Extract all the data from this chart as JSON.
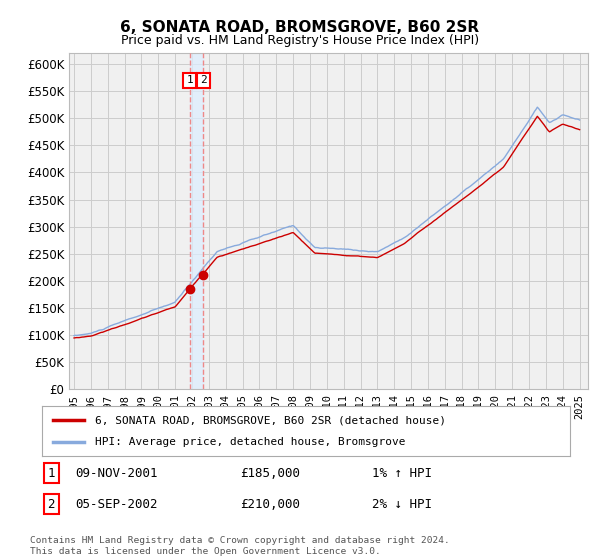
{
  "title": "6, SONATA ROAD, BROMSGROVE, B60 2SR",
  "subtitle": "Price paid vs. HM Land Registry's House Price Index (HPI)",
  "ylabel_ticks": [
    "£0",
    "£50K",
    "£100K",
    "£150K",
    "£200K",
    "£250K",
    "£300K",
    "£350K",
    "£400K",
    "£450K",
    "£500K",
    "£550K",
    "£600K"
  ],
  "ytick_values": [
    0,
    50000,
    100000,
    150000,
    200000,
    250000,
    300000,
    350000,
    400000,
    450000,
    500000,
    550000,
    600000
  ],
  "ylim": [
    0,
    620000
  ],
  "xlim_start": 1994.7,
  "xlim_end": 2025.5,
  "xtick_years": [
    1995,
    1996,
    1997,
    1998,
    1999,
    2000,
    2001,
    2002,
    2003,
    2004,
    2005,
    2006,
    2007,
    2008,
    2009,
    2010,
    2011,
    2012,
    2013,
    2014,
    2015,
    2016,
    2017,
    2018,
    2019,
    2020,
    2021,
    2022,
    2023,
    2024,
    2025
  ],
  "red_line_color": "#cc0000",
  "blue_line_color": "#88aadd",
  "dashed_line_color": "#ee8888",
  "shade_color": "#ddeeff",
  "marker_color": "#cc0000",
  "grid_color": "#cccccc",
  "bg_color": "#ffffff",
  "plot_bg_color": "#f0f0f0",
  "legend_label_red": "6, SONATA ROAD, BROMSGROVE, B60 2SR (detached house)",
  "legend_label_blue": "HPI: Average price, detached house, Bromsgrove",
  "transaction1_label": "1",
  "transaction1_date": "09-NOV-2001",
  "transaction1_price": "£185,000",
  "transaction1_hpi": "1% ↑ HPI",
  "transaction1_x": 2001.86,
  "transaction1_y": 185000,
  "transaction2_label": "2",
  "transaction2_date": "05-SEP-2002",
  "transaction2_price": "£210,000",
  "transaction2_hpi": "2% ↓ HPI",
  "transaction2_x": 2002.68,
  "transaction2_y": 210000,
  "footer": "Contains HM Land Registry data © Crown copyright and database right 2024.\nThis data is licensed under the Open Government Licence v3.0."
}
